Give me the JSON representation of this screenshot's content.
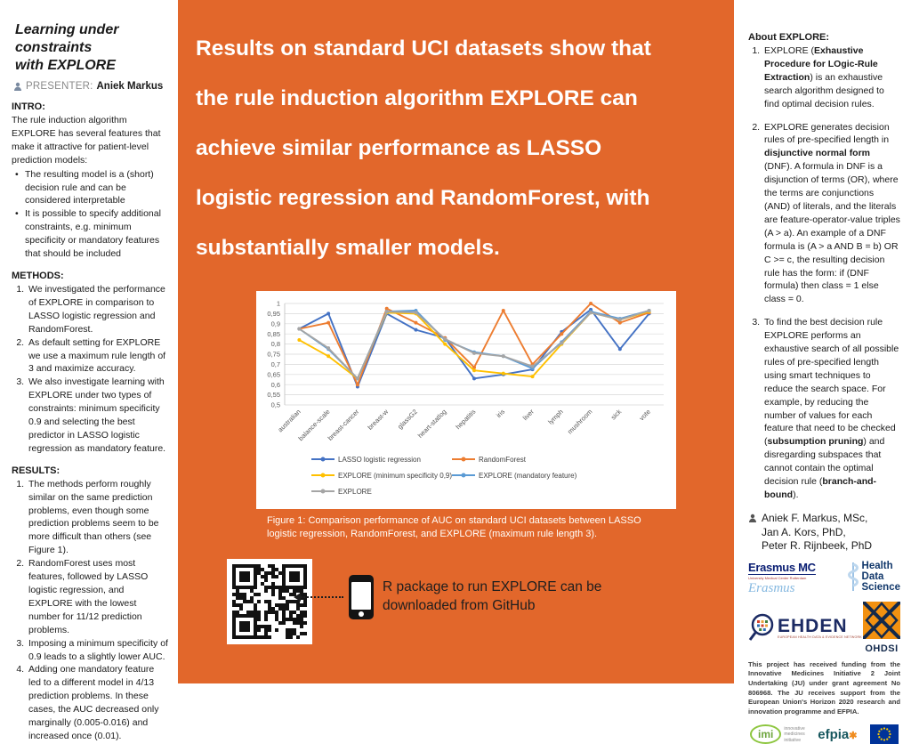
{
  "colors": {
    "poster_orange": "#e2672b",
    "series_blue": "#4472c4",
    "series_orange": "#ed7d31",
    "series_yellow": "#ffc000",
    "series_lightblue": "#5b9bd5",
    "series_gray": "#a5a5a5",
    "gridline": "#d9d9d9"
  },
  "left": {
    "title_line1": "Learning under constraints",
    "title_line2": "with EXPLORE",
    "presenter_label": "PRESENTER:",
    "presenter_name": "Aniek Markus",
    "intro_heading": "INTRO:",
    "intro_text": "The rule induction algorithm EXPLORE has several features that make it attractive for patient-level prediction models:",
    "intro_bullets": [
      "The resulting model is a (short) decision rule and can be considered interpretable",
      "It is possible to specify additional constraints, e.g. minimum specificity or mandatory features that should be included"
    ],
    "methods_heading": "METHODS:",
    "methods_items": [
      "We investigated the performance of EXPLORE in comparison to LASSO logistic regression and RandomForest.",
      "As default setting for EXPLORE we use a maximum rule length of 3 and maximize accuracy.",
      "We also investigate learning with EXPLORE under two types of constraints: minimum specificity 0.9 and selecting the best predictor in LASSO logistic regression as mandatory feature."
    ],
    "results_heading": "RESULTS:",
    "results_items": [
      "The methods perform roughly similar on the same prediction problems, even though some prediction problems seem to be more difficult than others (see Figure 1).",
      "RandomForest uses most features, followed by LASSO logistic regression, and EXPLORE with the lowest number for 11/12 prediction problems.",
      "Imposing a minimum specificity of 0.9 leads to a slightly lower AUC.",
      "Adding one mandatory feature led to a different model in 4/13 prediction problems. In these cases, the AUC decreased only marginally (0.005-0.016) and increased once (0.01)."
    ]
  },
  "center": {
    "headline_lines": [
      "Results on standard UCI datasets show that",
      "the rule induction algorithm EXPLORE can",
      "achieve similar performance as LASSO",
      "logistic regression and RandomForest, with",
      "substantially smaller models."
    ],
    "figure_caption": "Figure 1: Comparison performance of AUC on standard UCI datasets between LASSO logistic regression, RandomForest, and EXPLORE (maximum rule length 3).",
    "qr_note": "R package to run EXPLORE can be downloaded from GitHub"
  },
  "right": {
    "about_heading": "About EXPLORE:",
    "about_items": [
      "EXPLORE (**Exhaustive Procedure for LOgic-Rule Extraction**) is an exhaustive search algorithm designed to find optimal decision rules.",
      "EXPLORE generates decision rules of pre-specified length in **disjunctive normal form** (DNF). A formula in DNF is a disjunction of terms (OR), where the terms are conjunctions (AND) of literals, and the literals are feature-operator-value triples (A > a). An example of a DNF formula is (A > a AND B = b) OR C >= c, the resulting decision rule has the form: if (DNF formula) then class = 1 else class = 0.",
      "To find the best decision rule EXPLORE performs an exhaustive search of all possible rules of pre-specified length using smart techniques to reduce the search space. For example, by reducing the number of values for each feature that need to be checked (**subsumption pruning**) and disregarding subspaces that cannot contain the optimal decision rule (**branch-and-bound**)."
    ],
    "authors": [
      "Aniek F. Markus, MSc,",
      "Jan A. Kors, PhD,",
      "Peter R. Rijnbeek, PhD"
    ],
    "funding_text": "This project has received funding from the Innovative Medicines Initiative 2 Joint Undertaking (JU) under grant agreement No 806968. The JU receives support from the European Union's Horizon 2020 research and innovation programme and EFPIA.",
    "logos": {
      "erasmus_title": "Erasmus MC",
      "erasmus_sub": "University Medical Center Rotterdam",
      "erasmus_signature": "Erasmus",
      "hds_lines": [
        "Health",
        "Data",
        "Science"
      ],
      "ehden_title": "EHDEN",
      "ehden_sub": "EUROPEAN HEALTH DATA & EVIDENCE NETWORK",
      "ohdsi_title": "OHDSI",
      "imi_title": "imi",
      "imi_sub_lines": [
        "innovative",
        "medicines",
        "initiative"
      ],
      "efpia_title": "efpia"
    }
  },
  "chart_data": {
    "type": "line",
    "title": "",
    "xlabel": "",
    "ylabel": "",
    "ylim": [
      0.5,
      1.0
    ],
    "ytick_labels_top_to_bottom": [
      "1",
      "0,95",
      "0,9",
      "0,85",
      "0,8",
      "0,75",
      "0,7",
      "0,65",
      "0,6",
      "0,55",
      "0,5"
    ],
    "grid": true,
    "legend_position": "bottom",
    "categories": [
      "australian",
      "balance-scale",
      "breast-cancer",
      "breast-w",
      "glassG2",
      "heart-statlog",
      "hepatitis",
      "iris",
      "liver",
      "lymph",
      "mushroom",
      "sick",
      "vote"
    ],
    "series": [
      {
        "name": "LASSO logistic regression",
        "color": "#4472c4",
        "values": [
          0.875,
          0.95,
          0.59,
          0.95,
          0.87,
          0.83,
          0.63,
          0.65,
          0.675,
          0.86,
          0.97,
          0.775,
          0.95
        ]
      },
      {
        "name": "RandomForest",
        "color": "#ed7d31",
        "values": [
          0.875,
          0.905,
          0.6,
          0.975,
          0.905,
          0.83,
          0.685,
          0.965,
          0.7,
          0.85,
          1.0,
          0.905,
          0.955
        ]
      },
      {
        "name": "EXPLORE (minimum specificity 0,9)",
        "color": "#ffc000",
        "values": [
          0.82,
          0.74,
          0.63,
          0.955,
          0.95,
          0.8,
          0.67,
          0.655,
          0.64,
          0.8,
          0.955,
          0.92,
          0.96
        ]
      },
      {
        "name": "EXPLORE (mandatory feature)",
        "color": "#5b9bd5",
        "values": [
          0.875,
          0.775,
          0.63,
          0.96,
          0.965,
          0.82,
          0.76,
          0.74,
          0.68,
          0.81,
          0.96,
          0.925,
          0.965
        ]
      },
      {
        "name": "EXPLORE",
        "color": "#a5a5a5",
        "values": [
          0.875,
          0.78,
          0.63,
          0.96,
          0.955,
          0.825,
          0.755,
          0.74,
          0.69,
          0.805,
          0.955,
          0.92,
          0.965
        ]
      }
    ]
  }
}
